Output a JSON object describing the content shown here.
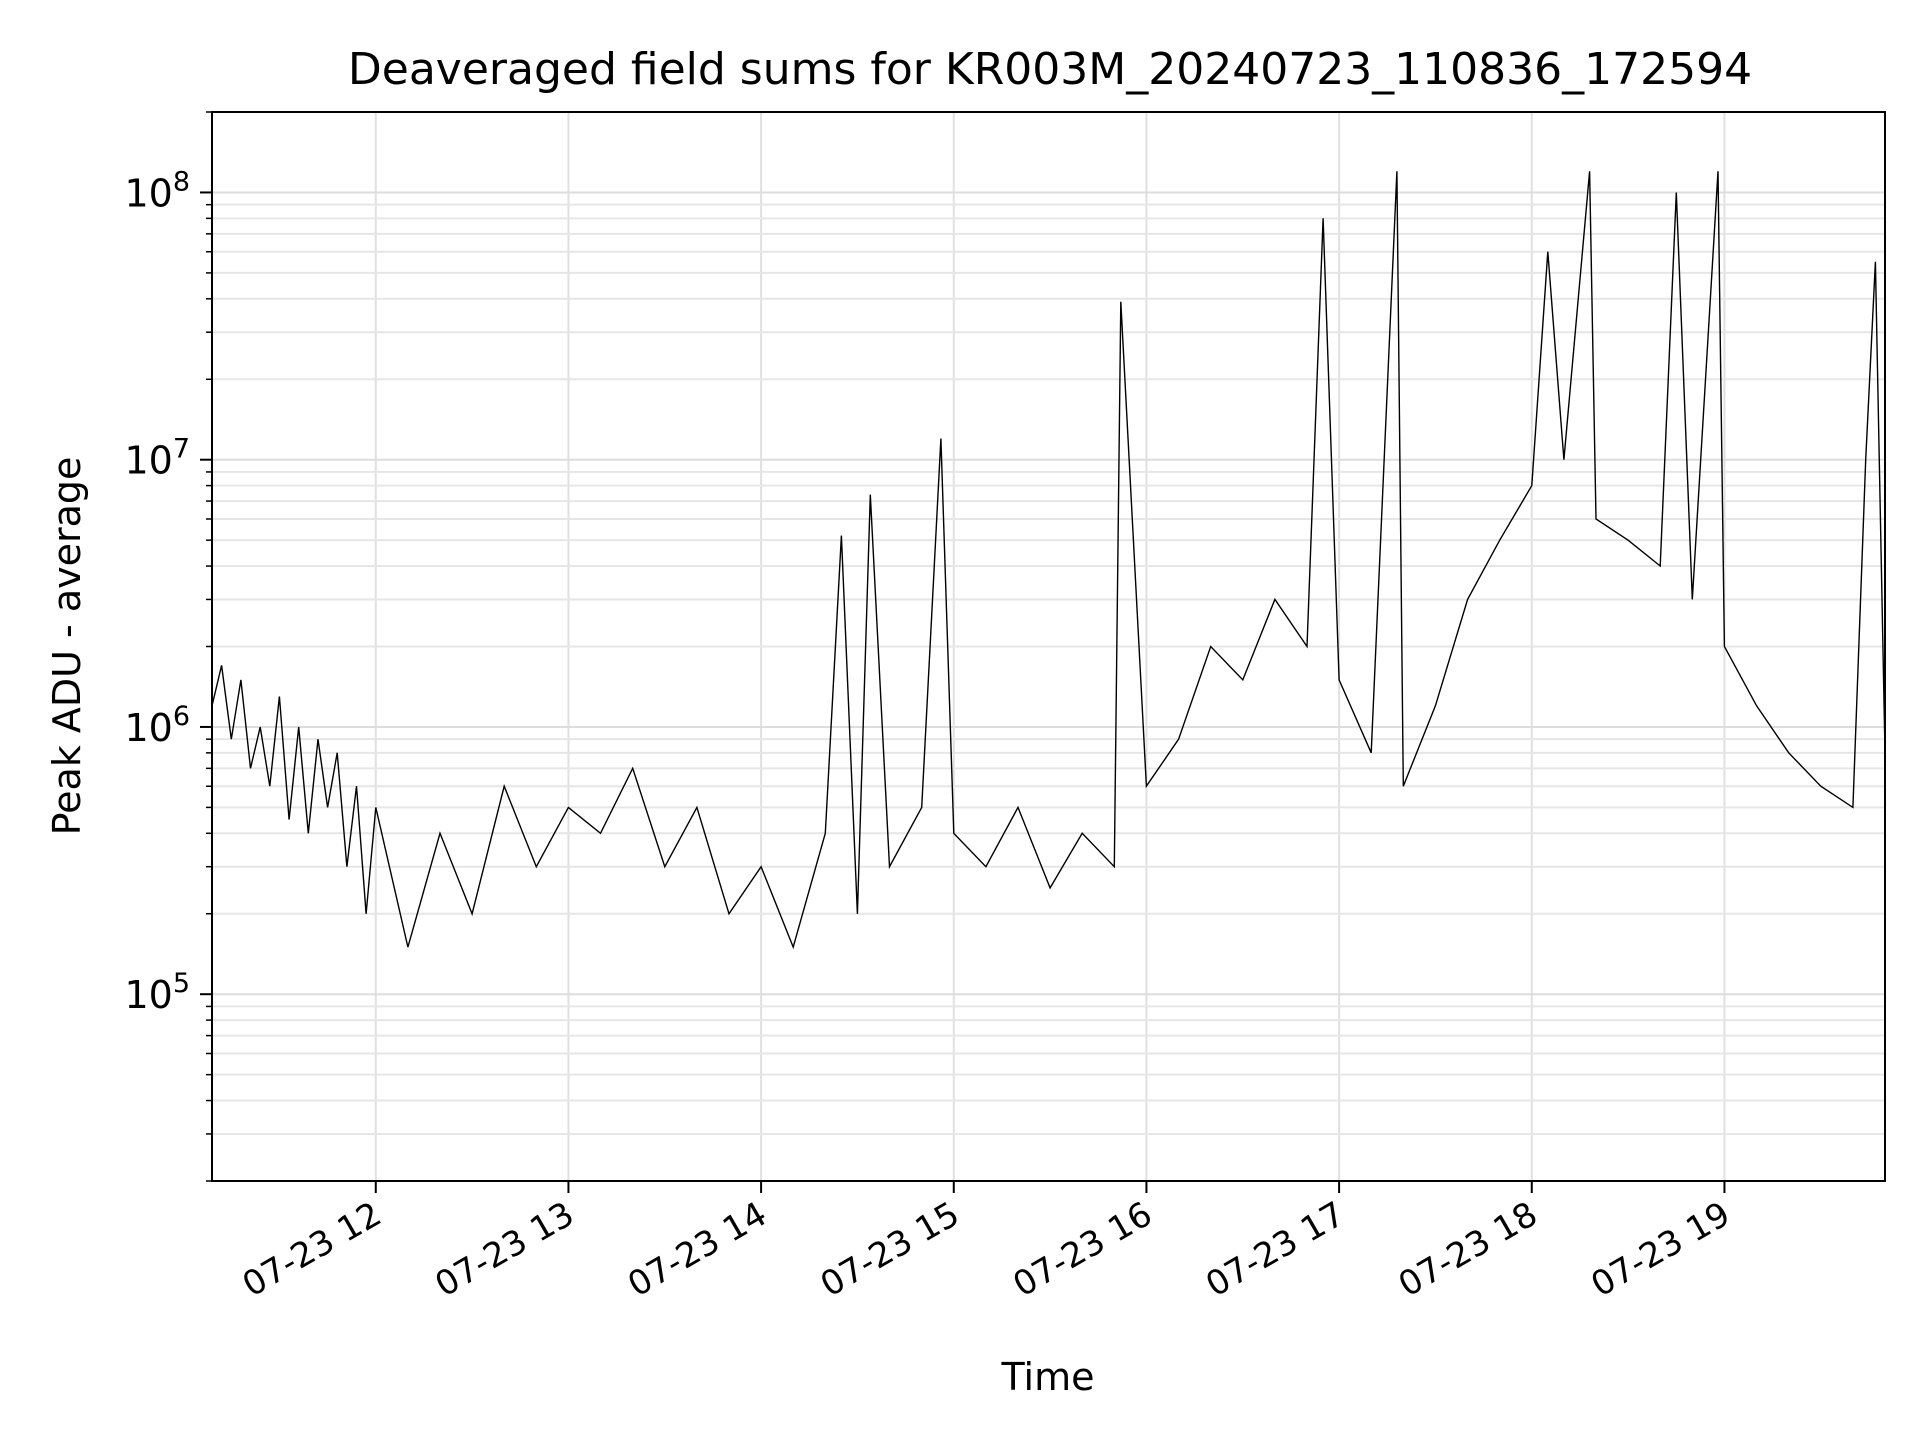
{
  "chart_data": {
    "type": "line",
    "title": "Deaveraged field sums for KR003M_20240723_110836_172594",
    "xlabel": "Time",
    "ylabel": "Peak ADU - average",
    "yscale": "log",
    "ylim": [
      20000,
      200000000
    ],
    "xlim": [
      "2024-07-23T11:09:00",
      "2024-07-23T19:50:00"
    ],
    "grid": true,
    "line_color": "#000000",
    "x_ticks": [
      {
        "value": "2024-07-23T12:00:00",
        "label": "07-23 12"
      },
      {
        "value": "2024-07-23T13:00:00",
        "label": "07-23 13"
      },
      {
        "value": "2024-07-23T14:00:00",
        "label": "07-23 14"
      },
      {
        "value": "2024-07-23T15:00:00",
        "label": "07-23 15"
      },
      {
        "value": "2024-07-23T16:00:00",
        "label": "07-23 16"
      },
      {
        "value": "2024-07-23T17:00:00",
        "label": "07-23 17"
      },
      {
        "value": "2024-07-23T18:00:00",
        "label": "07-23 18"
      },
      {
        "value": "2024-07-23T19:00:00",
        "label": "07-23 19"
      }
    ],
    "y_ticks": [
      {
        "value": 100000,
        "base": "10",
        "exp": "5"
      },
      {
        "value": 1000000,
        "base": "10",
        "exp": "6"
      },
      {
        "value": 10000000,
        "base": "10",
        "exp": "7"
      },
      {
        "value": 100000000,
        "base": "10",
        "exp": "8"
      }
    ],
    "series": [
      {
        "x": [
          "2024-07-23T11:09:00",
          "2024-07-23T11:12:00",
          "2024-07-23T11:15:00",
          "2024-07-23T11:18:00",
          "2024-07-23T11:21:00",
          "2024-07-23T11:24:00",
          "2024-07-23T11:27:00",
          "2024-07-23T11:30:00",
          "2024-07-23T11:33:00",
          "2024-07-23T11:36:00",
          "2024-07-23T11:39:00",
          "2024-07-23T11:42:00",
          "2024-07-23T11:45:00",
          "2024-07-23T11:48:00",
          "2024-07-23T11:51:00",
          "2024-07-23T11:54:00",
          "2024-07-23T11:57:00",
          "2024-07-23T12:00:00",
          "2024-07-23T12:10:00",
          "2024-07-23T12:20:00",
          "2024-07-23T12:30:00",
          "2024-07-23T12:40:00",
          "2024-07-23T12:50:00",
          "2024-07-23T13:00:00",
          "2024-07-23T13:10:00",
          "2024-07-23T13:20:00",
          "2024-07-23T13:30:00",
          "2024-07-23T13:40:00",
          "2024-07-23T13:50:00",
          "2024-07-23T14:00:00",
          "2024-07-23T14:10:00",
          "2024-07-23T14:20:00",
          "2024-07-23T14:25:00",
          "2024-07-23T14:30:00",
          "2024-07-23T14:34:00",
          "2024-07-23T14:40:00",
          "2024-07-23T14:50:00",
          "2024-07-23T14:56:00",
          "2024-07-23T15:00:00",
          "2024-07-23T15:10:00",
          "2024-07-23T15:20:00",
          "2024-07-23T15:30:00",
          "2024-07-23T15:40:00",
          "2024-07-23T15:50:00",
          "2024-07-23T15:52:00",
          "2024-07-23T16:00:00",
          "2024-07-23T16:10:00",
          "2024-07-23T16:20:00",
          "2024-07-23T16:30:00",
          "2024-07-23T16:40:00",
          "2024-07-23T16:50:00",
          "2024-07-23T16:55:00",
          "2024-07-23T17:00:00",
          "2024-07-23T17:10:00",
          "2024-07-23T17:18:00",
          "2024-07-23T17:20:00",
          "2024-07-23T17:30:00",
          "2024-07-23T17:40:00",
          "2024-07-23T17:50:00",
          "2024-07-23T18:00:00",
          "2024-07-23T18:05:00",
          "2024-07-23T18:10:00",
          "2024-07-23T18:18:00",
          "2024-07-23T18:20:00",
          "2024-07-23T18:30:00",
          "2024-07-23T18:40:00",
          "2024-07-23T18:45:00",
          "2024-07-23T18:50:00",
          "2024-07-23T18:58:00",
          "2024-07-23T19:00:00",
          "2024-07-23T19:10:00",
          "2024-07-23T19:20:00",
          "2024-07-23T19:30:00",
          "2024-07-23T19:40:00",
          "2024-07-23T19:44:00",
          "2024-07-23T19:47:00",
          "2024-07-23T19:50:00"
        ],
        "y": [
          1200000,
          1700000,
          900000,
          1500000,
          700000,
          1000000,
          600000,
          1300000,
          450000,
          1000000,
          400000,
          900000,
          500000,
          800000,
          300000,
          600000,
          200000,
          500000,
          150000,
          400000,
          200000,
          600000,
          300000,
          500000,
          400000,
          700000,
          300000,
          500000,
          200000,
          300000,
          150000,
          400000,
          5200000,
          200000,
          7400000,
          300000,
          500000,
          12000000,
          400000,
          300000,
          500000,
          250000,
          400000,
          300000,
          39000000,
          600000,
          900000,
          2000000,
          1500000,
          3000000,
          2000000,
          80000000,
          1500000,
          800000,
          120000000,
          600000,
          1200000,
          3000000,
          5000000,
          8000000,
          60000000,
          10000000,
          120000000,
          6000000,
          5000000,
          4000000,
          100000000,
          3000000,
          120000000,
          2000000,
          1200000,
          800000,
          600000,
          500000,
          10000000,
          55000000,
          800000
        ]
      }
    ]
  }
}
